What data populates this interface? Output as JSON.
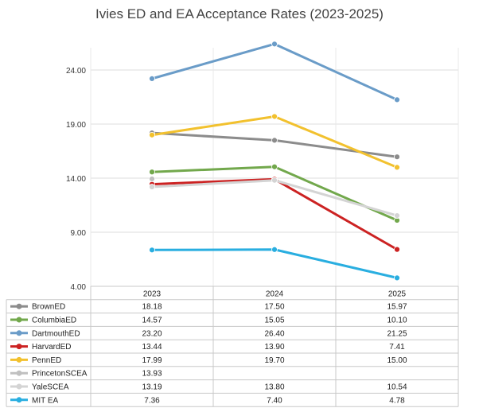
{
  "chart_data": {
    "type": "line",
    "title": "Ivies ED and EA Acceptance Rates (2023-2025)",
    "categories": [
      "2023",
      "2024",
      "2025"
    ],
    "y_ticks": [
      "4.00",
      "9.00",
      "14.00",
      "19.00",
      "24.00"
    ],
    "ylim": [
      4,
      28
    ],
    "xlabel": "",
    "ylabel": "",
    "legend": "table-below",
    "series": [
      {
        "name": "BrownED",
        "color": "#8c8c8c",
        "values": [
          18.18,
          17.5,
          15.97
        ],
        "labels": [
          "18.18",
          "17.50",
          "15.97"
        ]
      },
      {
        "name": "ColumbiaED",
        "color": "#72a84c",
        "values": [
          14.57,
          15.05,
          10.1
        ],
        "labels": [
          "14.57",
          "15.05",
          "10.10"
        ]
      },
      {
        "name": "DartmouthED",
        "color": "#6a9cc8",
        "values": [
          23.2,
          26.4,
          21.25
        ],
        "labels": [
          "23.20",
          "26.40",
          "21.25"
        ]
      },
      {
        "name": "HarvardED",
        "color": "#cc2222",
        "values": [
          13.44,
          13.9,
          7.41
        ],
        "labels": [
          "13.44",
          "13.90",
          "7.41"
        ]
      },
      {
        "name": "PennED",
        "color": "#f2c12e",
        "values": [
          17.99,
          19.7,
          15.0
        ],
        "labels": [
          "17.99",
          "19.70",
          "15.00"
        ]
      },
      {
        "name": "PrincetonSCEA",
        "color": "#c0c0c0",
        "values": [
          13.93,
          null,
          null
        ],
        "labels": [
          "13.93",
          "",
          ""
        ]
      },
      {
        "name": "YaleSCEA",
        "color": "#d4d4d4",
        "values": [
          13.19,
          13.8,
          10.54
        ],
        "labels": [
          "13.19",
          "13.80",
          "10.54"
        ]
      },
      {
        "name": "MIT EA",
        "color": "#29aee0",
        "values": [
          7.36,
          7.4,
          4.78
        ],
        "labels": [
          "7.36",
          "7.40",
          "4.78"
        ]
      }
    ]
  }
}
